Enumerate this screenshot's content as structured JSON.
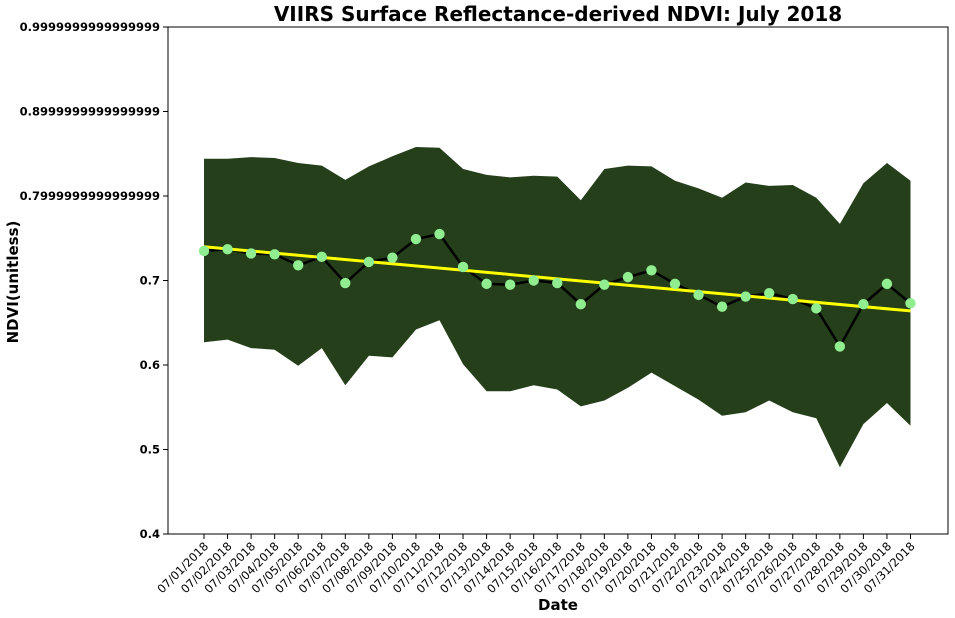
{
  "chart_data": {
    "type": "line",
    "title": "VIIRS Surface Reflectance-derived NDVI: July 2018",
    "xlabel": "Date",
    "ylabel": "NDVI(unitless)",
    "ylim": [
      0.4,
      1.0
    ],
    "yticks": [
      "0.4",
      "0.5",
      "0.6",
      "0.7",
      "0.7999999999999999",
      "0.8999999999999999",
      "0.9999999999999999"
    ],
    "ytick_values": [
      0.4,
      0.5,
      0.6,
      0.7,
      0.8,
      0.9,
      1.0
    ],
    "categories": [
      "07/01/2018",
      "07/02/2018",
      "07/03/2018",
      "07/04/2018",
      "07/05/2018",
      "07/06/2018",
      "07/07/2018",
      "07/08/2018",
      "07/09/2018",
      "07/10/2018",
      "07/11/2018",
      "07/12/2018",
      "07/13/2018",
      "07/14/2018",
      "07/15/2018",
      "07/16/2018",
      "07/17/2018",
      "07/18/2018",
      "07/19/2018",
      "07/20/2018",
      "07/21/2018",
      "07/22/2018",
      "07/23/2018",
      "07/24/2018",
      "07/25/2018",
      "07/26/2018",
      "07/27/2018",
      "07/28/2018",
      "07/29/2018",
      "07/30/2018",
      "07/31/2018"
    ],
    "series": [
      {
        "kind": "mean",
        "values": [
          0.735,
          0.737,
          0.732,
          0.731,
          0.718,
          0.728,
          0.697,
          0.722,
          0.727,
          0.749,
          0.755,
          0.716,
          0.696,
          0.695,
          0.7,
          0.697,
          0.672,
          0.695,
          0.704,
          0.712,
          0.696,
          0.683,
          0.669,
          0.681,
          0.685,
          0.678,
          0.667,
          0.622,
          0.672,
          0.696,
          0.673
        ]
      },
      {
        "kind": "upper_bound",
        "values": [
          0.844,
          0.844,
          0.846,
          0.845,
          0.839,
          0.836,
          0.819,
          0.835,
          0.847,
          0.858,
          0.857,
          0.832,
          0.825,
          0.822,
          0.824,
          0.823,
          0.795,
          0.832,
          0.836,
          0.835,
          0.818,
          0.809,
          0.798,
          0.816,
          0.812,
          0.813,
          0.798,
          0.767,
          0.815,
          0.839,
          0.818
        ]
      },
      {
        "kind": "lower_bound",
        "values": [
          0.627,
          0.63,
          0.62,
          0.618,
          0.599,
          0.62,
          0.576,
          0.611,
          0.609,
          0.642,
          0.653,
          0.601,
          0.569,
          0.569,
          0.576,
          0.571,
          0.551,
          0.558,
          0.573,
          0.591,
          0.575,
          0.559,
          0.54,
          0.544,
          0.558,
          0.544,
          0.537,
          0.479,
          0.53,
          0.555,
          0.528
        ]
      },
      {
        "kind": "trend",
        "start": 0.74,
        "end": 0.664
      }
    ],
    "colors": {
      "band": "#243f1a",
      "line": "#000000",
      "markers": "#90ee90",
      "trend": "#ffff00"
    },
    "grid": false
  }
}
